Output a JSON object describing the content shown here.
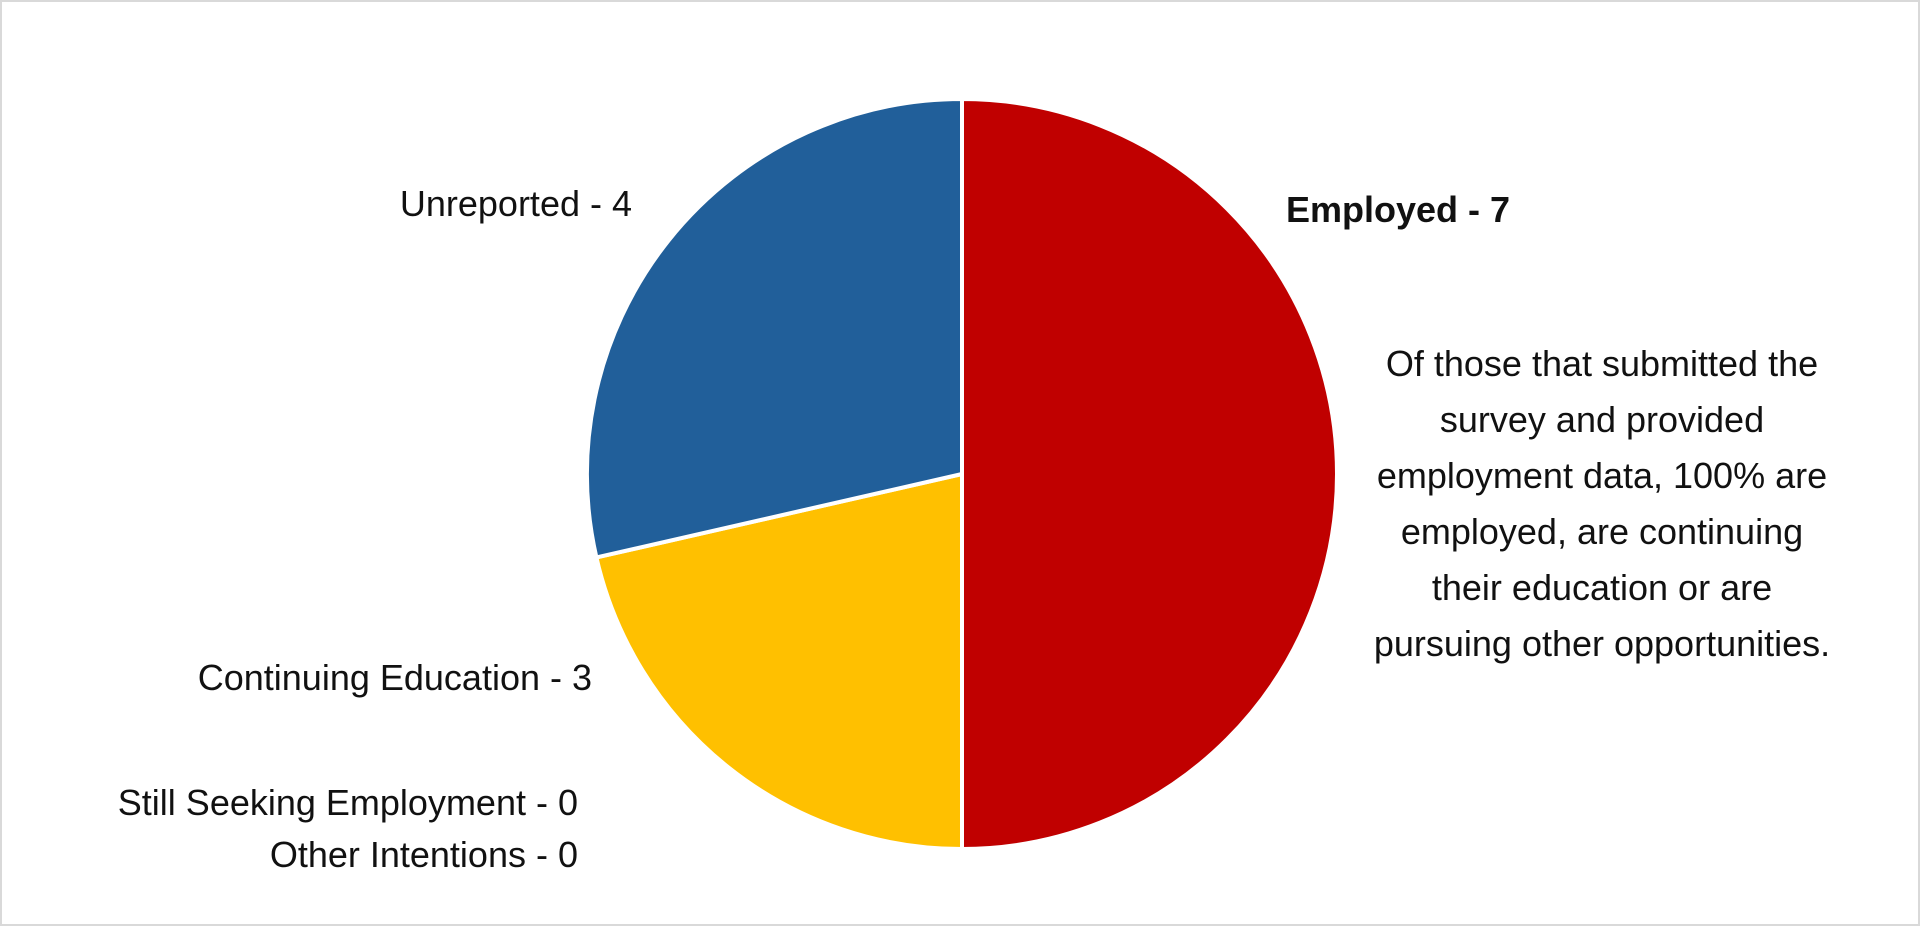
{
  "chart_data": {
    "type": "pie",
    "title": "",
    "slices": [
      {
        "label": "Employed - 7",
        "category": "Employed",
        "value": 7,
        "color": "#c00000",
        "bold": true
      },
      {
        "label": "Still Seeking Employment - 0",
        "category": "Still Seeking Employment",
        "value": 0,
        "color": "#7f7f7f",
        "bold": false
      },
      {
        "label": "Other Intentions - 0",
        "category": "Other Intentions",
        "value": 0,
        "color": "#a5a5a5",
        "bold": false
      },
      {
        "label": "Continuing Education - 3",
        "category": "Continuing Education",
        "value": 3,
        "color": "#ffc000",
        "bold": false
      },
      {
        "label": "Unreported - 4",
        "category": "Unreported",
        "value": 4,
        "color": "#215f9a",
        "bold": false
      }
    ],
    "start_angle_deg": 0,
    "direction": "clockwise",
    "legend": "none",
    "annotation": "Of those that submitted the survey and provided employment data, 100% are employed, are continuing their education or are pursuing other opportunities."
  }
}
